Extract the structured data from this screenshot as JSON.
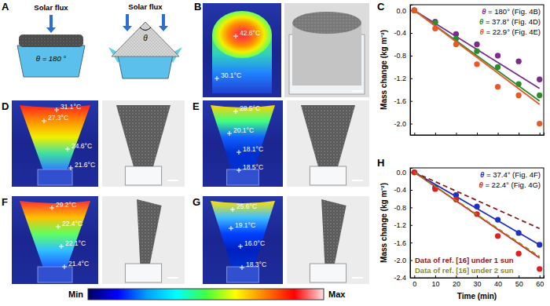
{
  "chart_data": [
    {
      "type": "scatter",
      "ylabel": "Mass change (kg m⁻²)",
      "x": [
        0,
        10,
        20,
        30,
        40,
        50,
        60
      ],
      "fit_x": [
        0,
        60
      ],
      "xlim": [
        -2,
        62
      ],
      "ylim": [
        -2.2,
        0.1
      ],
      "xticks": [
        0,
        10,
        20,
        30,
        40,
        50,
        60
      ],
      "yticks": [
        {
          "value": 0,
          "label": "0.0"
        },
        -0.4,
        -0.8,
        -1.2,
        -1.6,
        {
          "value": -2,
          "label": "-2.0"
        }
      ],
      "tick_labels": "y",
      "legend": "upper right",
      "series": [
        {
          "name": "θ = 180° (Fig. 4B)",
          "color": "#7b2d8e",
          "type": "scatter",
          "marker": "circle",
          "values": [
            0,
            -0.2,
            -0.42,
            -0.6,
            -0.8,
            -0.9,
            -1.22
          ],
          "fit_values": [
            0,
            -1.38
          ]
        },
        {
          "name": "θ = 37.8° (Fig. 4D)",
          "color": "#2e8b2e",
          "type": "scatter",
          "marker": "circle",
          "values": [
            0,
            -0.22,
            -0.5,
            -0.72,
            -1.0,
            -1.3,
            -1.5
          ],
          "fit_values": [
            0,
            -1.6
          ]
        },
        {
          "name": "θ = 22.9° (Fig. 4E)",
          "color": "#e8582a",
          "type": "scatter",
          "marker": "circle",
          "values": [
            0,
            -0.32,
            -0.6,
            -0.95,
            -1.35,
            -1.5,
            -2.0
          ],
          "fit_values": [
            0,
            -1.66
          ]
        }
      ]
    },
    {
      "type": "scatter",
      "xlabel": "Time (min)",
      "ylabel": "Mass change (kg m⁻²)",
      "x": [
        0,
        10,
        20,
        30,
        40,
        50,
        60
      ],
      "fit_x": [
        0,
        60
      ],
      "xlim": [
        -2,
        62
      ],
      "ylim": [
        -2.4,
        0.1
      ],
      "xticks": [
        0,
        10,
        20,
        30,
        40,
        50,
        60
      ],
      "yticks": [
        {
          "value": 0,
          "label": "0.0"
        },
        -0.4,
        -0.8,
        -1.2,
        -1.6,
        {
          "value": -2,
          "label": "-2.0"
        },
        -2.4
      ],
      "legend": "upper right",
      "series": [
        {
          "name": "θ = 37.4° (Fig. 4F)",
          "color": "#2030c0",
          "type": "scatter",
          "marker": "circle",
          "values": [
            0,
            -0.35,
            -0.52,
            -0.78,
            -1.08,
            -1.38,
            -1.65
          ],
          "fit_values": [
            0,
            -1.65
          ]
        },
        {
          "name": "θ = 22.4° (Fig. 4G)",
          "color": "#e02020",
          "type": "scatter",
          "marker": "circle",
          "values": [
            0,
            -0.38,
            -0.62,
            -0.95,
            -1.45,
            -1.85,
            -2.2
          ],
          "fit_values": [
            0,
            -1.95
          ]
        },
        {
          "name": "Data of ref. [16] under 1 sun",
          "color": "#8b1a1a",
          "type": "line",
          "line_style": "dashed",
          "x": [
            0,
            60
          ],
          "values": [
            0,
            -1.28
          ]
        },
        {
          "name": "Data of ref. [16] under 2 sun",
          "color": "#8b8b1a",
          "type": "line",
          "line_style": "dashed",
          "x": [
            0,
            60
          ],
          "values": [
            0,
            -1.92
          ]
        }
      ]
    }
  ],
  "figure": {
    "panel_labels": [
      "A",
      "B",
      "C",
      "D",
      "E",
      "F",
      "G",
      "H"
    ],
    "diagram": {
      "left": {
        "flux_label": "Solar flux",
        "angle_label": "θ = 180 °"
      },
      "right": {
        "flux_label": "Solar flux",
        "angle_label": "θ"
      }
    },
    "thermal_images": [
      {
        "temperatures": [
          "42.6°C",
          "30.1°C"
        ]
      },
      {
        "temperatures": [
          "31.1°C",
          "27.3°C",
          "24.6°C",
          "21.6°C"
        ]
      },
      {
        "temperatures": [
          "28.5°C",
          "20.1°C",
          "18.1°C",
          "18.5°C"
        ]
      },
      {
        "temperatures": [
          "29.2°C",
          "22.4°C",
          "22.1°C",
          "21.4°C"
        ]
      },
      {
        "temperatures": [
          "25.6°C",
          "19.1°C",
          "16.0°C",
          "18.3°C"
        ]
      }
    ],
    "colorbar": {
      "min_label": "Min",
      "max_label": "Max"
    }
  }
}
